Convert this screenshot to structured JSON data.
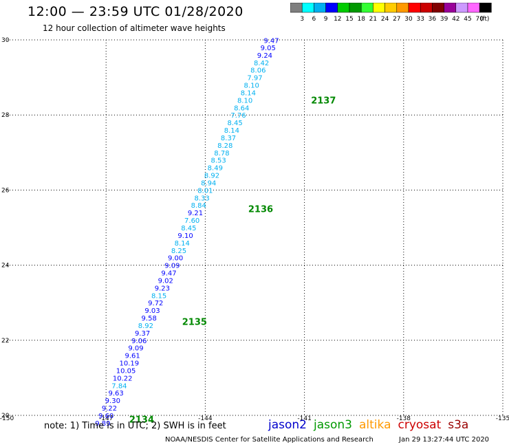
{
  "title": "12:00 — 23:59 UTC 01/28/2020",
  "subtitle": "12 hour collection of altimeter wave heights",
  "colorbar": {
    "unit": "(ft)",
    "labels": [
      "3",
      "6",
      "9",
      "12",
      "15",
      "18",
      "21",
      "24",
      "27",
      "30",
      "33",
      "36",
      "39",
      "42",
      "45",
      "70"
    ],
    "colors": [
      "#7f7f7f",
      "#00ffff",
      "#00b0f0",
      "#0000ff",
      "#00cc00",
      "#009900",
      "#33ff33",
      "#ffff00",
      "#ffcc00",
      "#ff9900",
      "#ff0000",
      "#cc0000",
      "#800000",
      "#990099",
      "#cc99ff",
      "#ff66ff",
      "#000000"
    ]
  },
  "note": "note: 1) Time is in UTC; 2) SWH is in feet",
  "satellites": [
    {
      "name": "jason2",
      "color": "#0000cc"
    },
    {
      "name": "jason3",
      "color": "#009900"
    },
    {
      "name": "altika",
      "color": "#ff9900"
    },
    {
      "name": "cryosat",
      "color": "#cc0000"
    },
    {
      "name": "s3a",
      "color": "#990000"
    }
  ],
  "credit": "NOAA/NESDIS Center for Satellite Applications and Research",
  "credit_time": "Jan 29 13:27:44 UTC 2020",
  "map": {
    "x_ticks": [
      "-150",
      "-147",
      "-144",
      "-141",
      "-138",
      "-135"
    ],
    "y_ticks": [
      "30",
      "28",
      "26",
      "24",
      "22",
      "20"
    ],
    "lon_range": [
      -150,
      -135
    ],
    "lat_range": [
      20,
      30
    ]
  },
  "observations": [
    {
      "lat": 29.99,
      "lon": -142.0,
      "swh": "9.47"
    },
    {
      "lat": 29.8,
      "lon": -142.1,
      "swh": "9.05"
    },
    {
      "lat": 29.6,
      "lon": -142.2,
      "swh": "9.24"
    },
    {
      "lat": 29.4,
      "lon": -142.3,
      "swh": "8.42"
    },
    {
      "lat": 29.2,
      "lon": -142.4,
      "swh": "8.06"
    },
    {
      "lat": 29.0,
      "lon": -142.5,
      "swh": "7.97"
    },
    {
      "lat": 28.8,
      "lon": -142.6,
      "swh": "8.10"
    },
    {
      "lat": 28.6,
      "lon": -142.7,
      "swh": "8.14"
    },
    {
      "lat": 28.4,
      "lon": -142.8,
      "swh": "8.10"
    },
    {
      "lat": 28.2,
      "lon": -142.9,
      "swh": "8.64"
    },
    {
      "lat": 28.0,
      "lon": -143.0,
      "swh": "7.76"
    },
    {
      "lat": 27.8,
      "lon": -143.1,
      "swh": "8.45"
    },
    {
      "lat": 27.6,
      "lon": -143.2,
      "swh": "8.14"
    },
    {
      "lat": 27.4,
      "lon": -143.3,
      "swh": "8.37"
    },
    {
      "lat": 27.2,
      "lon": -143.4,
      "swh": "8.28"
    },
    {
      "lat": 27.0,
      "lon": -143.5,
      "swh": "8.78"
    },
    {
      "lat": 26.8,
      "lon": -143.6,
      "swh": "8.53"
    },
    {
      "lat": 26.6,
      "lon": -143.7,
      "swh": "8.49"
    },
    {
      "lat": 26.4,
      "lon": -143.8,
      "swh": "8.92"
    },
    {
      "lat": 26.2,
      "lon": -143.9,
      "swh": "8.94"
    },
    {
      "lat": 26.0,
      "lon": -144.0,
      "swh": "8.01"
    },
    {
      "lat": 25.8,
      "lon": -144.1,
      "swh": "8.33"
    },
    {
      "lat": 25.6,
      "lon": -144.2,
      "swh": "8.84"
    },
    {
      "lat": 25.4,
      "lon": -144.3,
      "swh": "9.21"
    },
    {
      "lat": 25.2,
      "lon": -144.4,
      "swh": "7.60"
    },
    {
      "lat": 25.0,
      "lon": -144.5,
      "swh": "8.45"
    },
    {
      "lat": 24.8,
      "lon": -144.6,
      "swh": "9.10"
    },
    {
      "lat": 24.6,
      "lon": -144.7,
      "swh": "8.14"
    },
    {
      "lat": 24.4,
      "lon": -144.8,
      "swh": "8.25"
    },
    {
      "lat": 24.2,
      "lon": -144.9,
      "swh": "9.00"
    },
    {
      "lat": 24.0,
      "lon": -145.0,
      "swh": "9.09"
    },
    {
      "lat": 23.8,
      "lon": -145.1,
      "swh": "9.47"
    },
    {
      "lat": 23.6,
      "lon": -145.2,
      "swh": "9.02"
    },
    {
      "lat": 23.4,
      "lon": -145.3,
      "swh": "9.23"
    },
    {
      "lat": 23.2,
      "lon": -145.4,
      "swh": "8.15"
    },
    {
      "lat": 23.0,
      "lon": -145.5,
      "swh": "9.72"
    },
    {
      "lat": 22.8,
      "lon": -145.6,
      "swh": "9.03"
    },
    {
      "lat": 22.6,
      "lon": -145.7,
      "swh": "9.58"
    },
    {
      "lat": 22.4,
      "lon": -145.8,
      "swh": "8.92"
    },
    {
      "lat": 22.2,
      "lon": -145.9,
      "swh": "9.37"
    },
    {
      "lat": 22.0,
      "lon": -146.0,
      "swh": "9.06"
    },
    {
      "lat": 21.8,
      "lon": -146.1,
      "swh": "9.09"
    },
    {
      "lat": 21.6,
      "lon": -146.2,
      "swh": "9.61"
    },
    {
      "lat": 21.4,
      "lon": -146.3,
      "swh": "10.19"
    },
    {
      "lat": 21.2,
      "lon": -146.4,
      "swh": "10.05"
    },
    {
      "lat": 21.0,
      "lon": -146.5,
      "swh": "10.22"
    },
    {
      "lat": 20.8,
      "lon": -146.6,
      "swh": "7.84"
    },
    {
      "lat": 20.6,
      "lon": -146.7,
      "swh": "9.63"
    },
    {
      "lat": 20.4,
      "lon": -146.8,
      "swh": "9.30"
    },
    {
      "lat": 20.2,
      "lon": -146.9,
      "swh": "9.22"
    },
    {
      "lat": 20.0,
      "lon": -147.0,
      "swh": "9.60"
    },
    {
      "lat": 19.8,
      "lon": -147.1,
      "swh": "9.89"
    }
  ],
  "pass_labels": [
    {
      "text": "2137",
      "lat": 28.4,
      "lon": -140.8
    },
    {
      "text": "2136",
      "lat": 25.5,
      "lon": -142.7
    },
    {
      "text": "2135",
      "lat": 22.5,
      "lon": -144.7
    },
    {
      "text": "2134",
      "lat": 19.9,
      "lon": -146.3
    }
  ]
}
